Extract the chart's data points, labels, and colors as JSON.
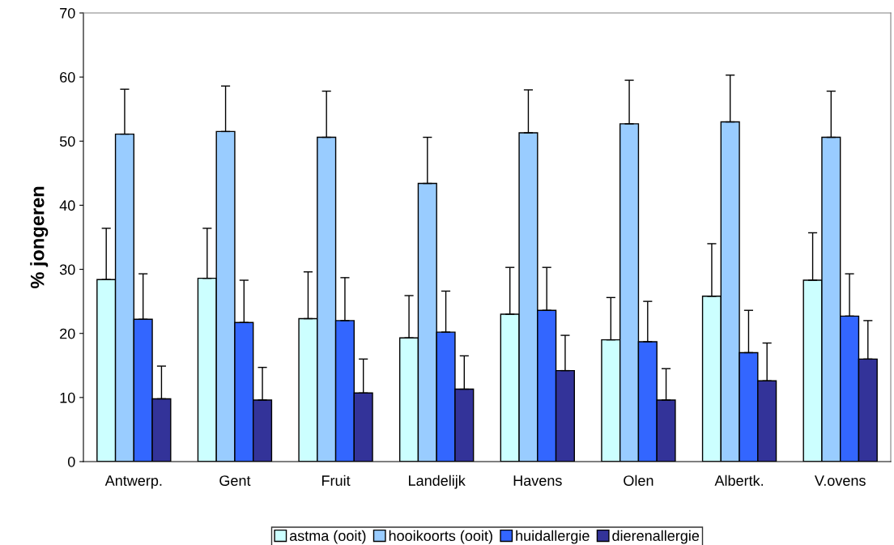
{
  "chart_data": {
    "type": "bar",
    "ylabel": "% jongeren",
    "categories": [
      "Antwerp.",
      "Gent",
      "Fruit",
      "Landelijk",
      "Havens",
      "Olen",
      "Albertk.",
      "V.ovens"
    ],
    "series": [
      {
        "name": "astma (ooit)",
        "color": "#ccffff",
        "values": [
          28.4,
          28.6,
          22.3,
          19.3,
          23.0,
          19.0,
          25.8,
          28.3
        ],
        "errors": [
          [
            28.4,
            36.4
          ],
          [
            28.6,
            36.4
          ],
          [
            22.3,
            29.6
          ],
          [
            19.3,
            25.9
          ],
          [
            23.0,
            30.3
          ],
          [
            19.0,
            25.6
          ],
          [
            25.8,
            34.0
          ],
          [
            28.3,
            35.7
          ]
        ]
      },
      {
        "name": "hooikoorts (ooit)",
        "color": "#99ccff",
        "values": [
          51.1,
          51.5,
          50.6,
          43.4,
          51.3,
          52.7,
          53.0,
          50.6
        ],
        "errors": [
          [
            51.1,
            58.1
          ],
          [
            51.5,
            58.6
          ],
          [
            50.6,
            57.8
          ],
          [
            43.4,
            50.6
          ],
          [
            51.3,
            58.0
          ],
          [
            52.7,
            59.5
          ],
          [
            53.0,
            60.3
          ],
          [
            50.6,
            57.8
          ]
        ]
      },
      {
        "name": "huidallergie",
        "color": "#3366ff",
        "values": [
          22.2,
          21.7,
          22.0,
          20.2,
          23.6,
          18.7,
          17.0,
          22.7
        ],
        "errors": [
          [
            22.2,
            29.3
          ],
          [
            21.7,
            28.3
          ],
          [
            22.0,
            28.7
          ],
          [
            20.2,
            26.6
          ],
          [
            23.6,
            30.3
          ],
          [
            18.7,
            25.0
          ],
          [
            17.0,
            23.6
          ],
          [
            22.7,
            29.3
          ]
        ]
      },
      {
        "name": "dierenallergie",
        "color": "#333399",
        "values": [
          9.8,
          9.6,
          10.7,
          11.3,
          14.2,
          9.6,
          12.6,
          16.0
        ],
        "errors": [
          [
            9.8,
            14.9
          ],
          [
            9.6,
            14.7
          ],
          [
            10.7,
            16.0
          ],
          [
            11.3,
            16.5
          ],
          [
            14.2,
            19.7
          ],
          [
            9.6,
            14.5
          ],
          [
            12.6,
            18.5
          ],
          [
            16.0,
            22.0
          ]
        ]
      }
    ],
    "ylim": [
      0,
      70
    ],
    "yticks": [
      0,
      10,
      20,
      30,
      40,
      50,
      60,
      70
    ],
    "grid": false,
    "legend": "bottom"
  }
}
